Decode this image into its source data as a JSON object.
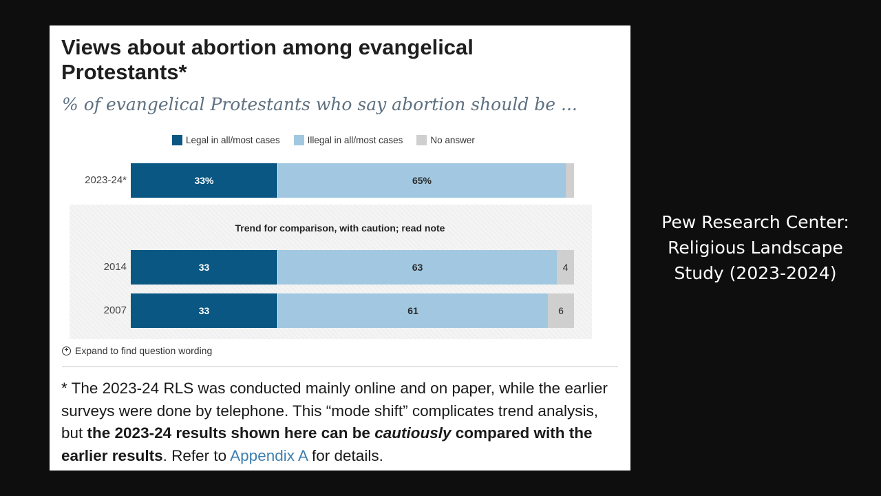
{
  "chart_data": {
    "type": "bar",
    "orientation": "horizontal-stacked",
    "title": "Views about abortion among evangelical Protestants*",
    "subtitle": "% of evangelical Protestants who say abortion should be ...",
    "legend": [
      {
        "key": "legal",
        "label": "Legal in all/most cases",
        "color": "#0b5783"
      },
      {
        "key": "illegal",
        "label": "Illegal in all/most cases",
        "color": "#a1c8e0"
      },
      {
        "key": "noans",
        "label": "No answer",
        "color": "#cfcfcf"
      }
    ],
    "categories": [
      "2023-24*",
      "2014",
      "2007"
    ],
    "series": [
      {
        "name": "Legal in all/most cases",
        "values": [
          33,
          33,
          33
        ],
        "labels": [
          "33%",
          "33",
          "33"
        ]
      },
      {
        "name": "Illegal in all/most cases",
        "values": [
          65,
          63,
          61
        ],
        "labels": [
          "65%",
          "63",
          "61"
        ]
      },
      {
        "name": "No answer",
        "values": [
          2,
          4,
          6
        ],
        "labels": [
          "",
          "4",
          "6"
        ]
      }
    ],
    "xlim": [
      0,
      100
    ],
    "trend_note": "Trend for comparison, with caution; read note"
  },
  "expand_label": "Expand to find question wording",
  "note": {
    "p1": "* The 2023-24 RLS was conducted mainly online and on paper, while the earlier surveys were done by telephone. This “mode shift” complicates trend analysis, but ",
    "b1": "the 2023-24 results shown here can be ",
    "b1_italic": "cautiously",
    "b2": " compared with the earlier results",
    "p2": ". Refer to ",
    "link": "Appendix A",
    "p3": " for details."
  },
  "side_caption": [
    "Pew Research Center:",
    "Religious Landscape",
    "Study (2023-2024)"
  ]
}
